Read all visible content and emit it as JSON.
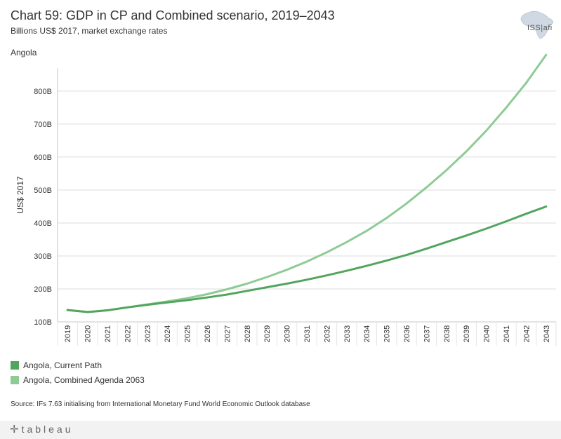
{
  "header": {
    "title": "Chart 59: GDP in CP and Combined scenario, 2019–2043",
    "subtitle": "Billions US$ 2017, market exchange rates",
    "country": "Angola",
    "logo_text": "ISS|afi"
  },
  "legend": {
    "items": [
      {
        "label": "Angola,  Current Path",
        "color": "#52a55f"
      },
      {
        "label": "Angola,  Combined Agenda 2063",
        "color": "#8fcb95"
      }
    ]
  },
  "footer": {
    "source": "Source: IFs 7.63 initialising from International Monetary Fund World Economic Outlook database",
    "brand": "tableau"
  },
  "chart_data": {
    "type": "line",
    "title": "Chart 59: GDP in CP and Combined scenario, 2019–2043",
    "xlabel": "",
    "ylabel": "US$ 2017",
    "ylim": [
      100,
      870
    ],
    "yticks": [
      100,
      200,
      300,
      400,
      500,
      600,
      700,
      800
    ],
    "ytick_labels": [
      "100B",
      "200B",
      "300B",
      "400B",
      "500B",
      "600B",
      "700B",
      "800B"
    ],
    "grid": true,
    "categories": [
      "2019",
      "2020",
      "2021",
      "2022",
      "2023",
      "2024",
      "2025",
      "2026",
      "2027",
      "2028",
      "2029",
      "2030",
      "2031",
      "2032",
      "2033",
      "2034",
      "2035",
      "2036",
      "2037",
      "2038",
      "2039",
      "2040",
      "2041",
      "2042",
      "2043"
    ],
    "series": [
      {
        "name": "Angola,  Current Path",
        "color": "#52a55f",
        "values": [
          136,
          130,
          135,
          144,
          152,
          159,
          166,
          174,
          183,
          194,
          205,
          216,
          228,
          241,
          255,
          270,
          286,
          303,
          322,
          342,
          362,
          383,
          405,
          428,
          450
        ]
      },
      {
        "name": "Angola,  Combined Agenda 2063",
        "color": "#8fcb95",
        "values": [
          136,
          130,
          135,
          144,
          153,
          162,
          172,
          184,
          199,
          216,
          236,
          258,
          283,
          311,
          342,
          376,
          415,
          459,
          508,
          560,
          617,
          680,
          750,
          825,
          910
        ]
      }
    ]
  }
}
